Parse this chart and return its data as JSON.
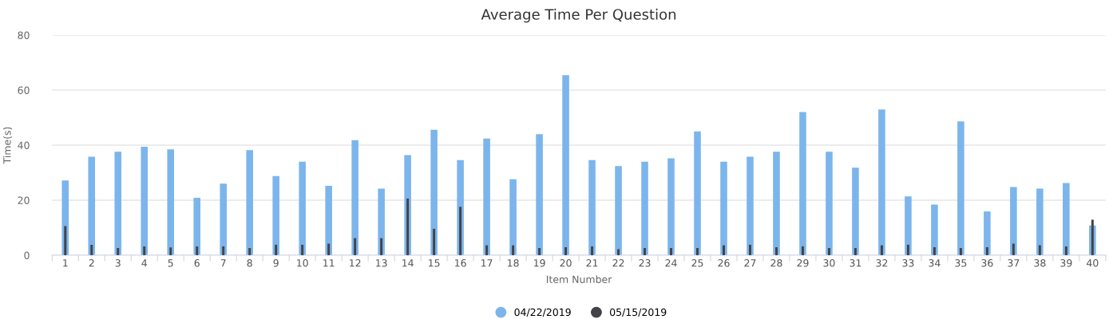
{
  "chart_data": {
    "type": "bar",
    "title": "Average Time Per Question",
    "xlabel": "Item Number",
    "ylabel": "Time(s)",
    "categories": [
      "1",
      "2",
      "3",
      "4",
      "5",
      "6",
      "7",
      "8",
      "9",
      "10",
      "11",
      "12",
      "13",
      "14",
      "15",
      "16",
      "17",
      "18",
      "19",
      "20",
      "21",
      "22",
      "23",
      "24",
      "25",
      "26",
      "27",
      "28",
      "29",
      "30",
      "31",
      "32",
      "33",
      "34",
      "35",
      "36",
      "37",
      "38",
      "39",
      "40"
    ],
    "series": [
      {
        "name": "04/22/2019",
        "color": "#7cb5ec",
        "values": [
          27.2,
          35.8,
          37.6,
          39.4,
          38.5,
          20.9,
          26,
          38.2,
          28.8,
          34,
          25.2,
          41.8,
          24.2,
          36.4,
          45.6,
          34.6,
          42.4,
          27.6,
          44,
          65.4,
          34.6,
          32.4,
          34,
          35.2,
          45,
          34,
          35.8,
          37.6,
          52,
          37.6,
          31.8,
          53,
          21.4,
          18.4,
          48.6,
          15.9,
          24.8,
          24.2,
          26.2,
          10.8
        ]
      },
      {
        "name": "05/15/2019",
        "color": "#434348",
        "values": [
          10.6,
          3.8,
          2.6,
          3.2,
          2.8,
          3.2,
          3.2,
          2.6,
          3.8,
          3.8,
          4.2,
          6.2,
          6.2,
          20.6,
          9.6,
          17.6,
          3.6,
          3.6,
          2.6,
          2.9,
          3.2,
          2.2,
          2.6,
          2.6,
          2.6,
          3.6,
          3.8,
          2.9,
          3.2,
          2.6,
          2.6,
          3.6,
          3.8,
          2.9,
          2.6,
          2.9,
          4.2,
          3.6,
          3.2,
          12.9
        ]
      }
    ],
    "ylim": [
      0,
      80
    ],
    "yticks": [
      0,
      20,
      40,
      60,
      80
    ],
    "grid": "y",
    "legend": "bottom"
  }
}
